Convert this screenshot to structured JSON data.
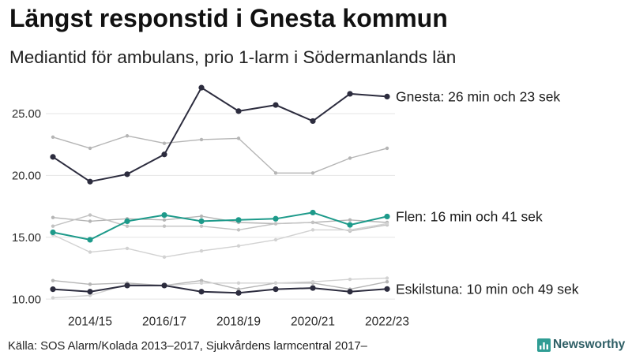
{
  "header": {
    "title": "Längst responstid i Gnesta kommun",
    "subtitle": "Mediantid för ambulans, prio 1-larm i Södermanlands län"
  },
  "footer": {
    "source": "Källa: SOS Alarm/Kolada 2013–2017, Sjukvårdens larmcentral 2017–",
    "logo_text": "Newsworthy",
    "logo_icon": "newsworthy-bar-chart-icon"
  },
  "colors": {
    "background": "#ffffff",
    "grid": "#e4e4e4",
    "highlight_dark": "#2c2c3e",
    "highlight_teal": "#1d9a8a",
    "other_medium": "#b5b5b5",
    "other_light": "#d2d2d2",
    "logo": "#2f9d94"
  },
  "chart_data": {
    "type": "line",
    "categories": [
      "",
      "2014/15",
      "",
      "2016/17",
      "",
      "2018/19",
      "",
      "2020/21",
      "",
      "2022/23"
    ],
    "ylim": [
      9.5,
      28
    ],
    "yticks": [
      10,
      15,
      20,
      25
    ],
    "ytick_labels": [
      "10.00",
      "15.00",
      "20.00",
      "25.00"
    ],
    "grid": true,
    "legend_position": "right",
    "series": [
      {
        "color": "#b5b5b5",
        "highlight": false,
        "values": [
          23.1,
          22.2,
          23.2,
          22.6,
          22.9,
          23.0,
          20.2,
          20.2,
          21.4,
          22.2
        ]
      },
      {
        "color": "#b5b5b5",
        "highlight": false,
        "values": [
          16.6,
          16.3,
          16.5,
          16.4,
          16.7,
          16.2,
          16.1,
          16.2,
          16.4,
          16.2
        ]
      },
      {
        "color": "#c2c2c2",
        "highlight": false,
        "values": [
          15.9,
          16.8,
          15.9,
          15.9,
          15.9,
          15.6,
          16.1,
          16.2,
          15.5,
          16.0
        ]
      },
      {
        "color": "#d2d2d2",
        "highlight": false,
        "values": [
          15.2,
          13.8,
          14.1,
          13.4,
          13.9,
          14.3,
          14.8,
          15.6,
          15.6,
          16.1
        ]
      },
      {
        "color": "#b5b5b5",
        "highlight": false,
        "values": [
          11.5,
          11.2,
          11.3,
          11.1,
          11.5,
          10.8,
          11.3,
          11.3,
          10.8,
          11.4
        ]
      },
      {
        "color": "#d2d2d2",
        "highlight": false,
        "values": [
          10.1,
          10.3,
          11.2,
          11.1,
          11.3,
          11.3,
          11.3,
          11.4,
          11.6,
          11.7
        ]
      },
      {
        "label": "Flen: 16 min och 41 sek",
        "color": "#1d9a8a",
        "highlight": true,
        "values": [
          15.4,
          14.8,
          16.3,
          16.8,
          16.3,
          16.4,
          16.5,
          17.0,
          16.0,
          16.68
        ]
      },
      {
        "label": "Eskilstuna: 10 min och 49 sek",
        "color": "#2c2c3e",
        "highlight": true,
        "values": [
          10.8,
          10.6,
          11.1,
          11.1,
          10.6,
          10.5,
          10.8,
          10.9,
          10.6,
          10.82
        ]
      },
      {
        "label": "Gnesta: 26 min och 23 sek",
        "color": "#2c2c3e",
        "highlight": true,
        "values": [
          21.5,
          19.5,
          20.1,
          21.7,
          27.1,
          25.2,
          25.7,
          24.4,
          26.6,
          26.38
        ]
      }
    ]
  }
}
